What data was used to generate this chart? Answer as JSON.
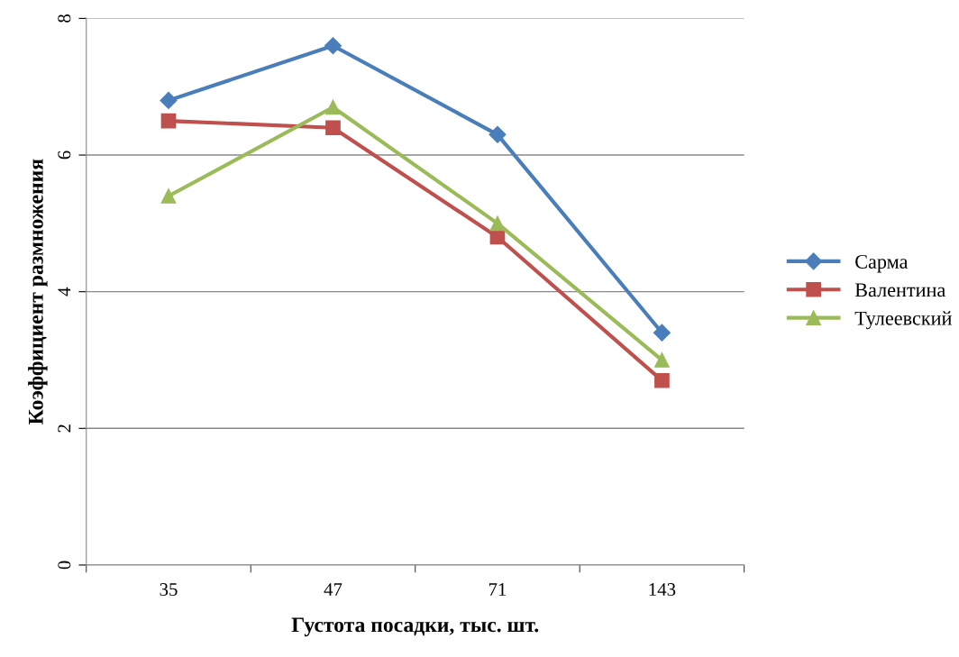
{
  "chart_data": {
    "type": "line",
    "xlabel": "Густота посадки, тыс. шт.",
    "ylabel": "Коэффициент размножения",
    "categories": [
      "35",
      "47",
      "71",
      "143"
    ],
    "series": [
      {
        "name": "Сарма",
        "color": "#4a7ebb",
        "marker": "diamond",
        "values": [
          6.8,
          7.6,
          6.3,
          3.4
        ]
      },
      {
        "name": "Валентина",
        "color": "#c0504d",
        "marker": "square",
        "values": [
          6.5,
          6.4,
          4.8,
          2.7
        ]
      },
      {
        "name": "Тулеевский",
        "color": "#9bbb59",
        "marker": "triangle",
        "values": [
          5.4,
          6.7,
          5.0,
          3.0
        ]
      }
    ],
    "ylim": [
      0,
      8
    ],
    "yticks": [
      0,
      2,
      4,
      6,
      8
    ],
    "grid": "y",
    "legend": "right"
  }
}
